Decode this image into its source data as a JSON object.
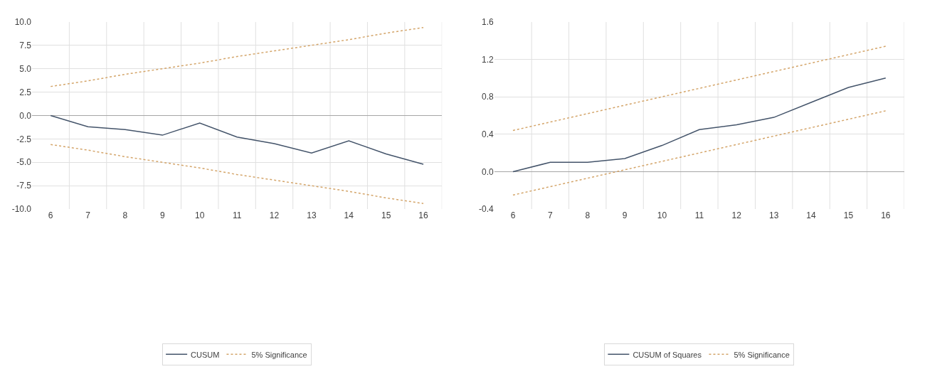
{
  "chart_data": [
    {
      "type": "line",
      "categories": [
        "6",
        "7",
        "8",
        "9",
        "10",
        "11",
        "12",
        "13",
        "14",
        "15",
        "16"
      ],
      "series": [
        {
          "name": "CUSUM",
          "color": "#44546a",
          "line_style": "solid",
          "values": [
            0,
            -1.2,
            -1.5,
            -2.1,
            -0.8,
            -2.3,
            -3.0,
            -4.0,
            -2.7,
            -4.1,
            -5.2
          ]
        },
        {
          "name": "5% Significance",
          "color": "#d4a56a",
          "line_style": "dotted",
          "values": [
            3.1,
            3.7,
            4.4,
            5.0,
            5.6,
            6.3,
            6.9,
            7.5,
            8.1,
            8.8,
            9.4
          ]
        },
        {
          "name": "5% Significance",
          "color": "#d4a56a",
          "line_style": "dotted",
          "values": [
            -3.1,
            -3.7,
            -4.4,
            -5.0,
            -5.6,
            -6.3,
            -6.9,
            -7.5,
            -8.1,
            -8.8,
            -9.4
          ]
        }
      ],
      "ylim": [
        -10,
        10
      ],
      "yticks": [
        {
          "value": -10,
          "label": "-10.0"
        },
        {
          "value": -7.5,
          "label": "-7.5"
        },
        {
          "value": -5,
          "label": "-5.0"
        },
        {
          "value": -2.5,
          "label": "-2.5"
        },
        {
          "value": 0,
          "label": "0.0"
        },
        {
          "value": 2.5,
          "label": "2.5"
        },
        {
          "value": 5,
          "label": "5.0"
        },
        {
          "value": 7.5,
          "label": "7.5"
        },
        {
          "value": 10,
          "label": "10.0"
        }
      ],
      "grid": true,
      "legend": "bottom",
      "marker": "none"
    },
    {
      "type": "line",
      "categories": [
        "6",
        "7",
        "8",
        "9",
        "10",
        "11",
        "12",
        "13",
        "14",
        "15",
        "16"
      ],
      "series": [
        {
          "name": "CUSUM of Squares",
          "color": "#44546a",
          "line_style": "solid",
          "values": [
            0,
            0.1,
            0.1,
            0.14,
            0.28,
            0.45,
            0.5,
            0.58,
            0.74,
            0.9,
            1.0
          ]
        },
        {
          "name": "5% Significance",
          "color": "#d4a56a",
          "line_style": "dotted",
          "values": [
            0.44,
            0.53,
            0.62,
            0.71,
            0.8,
            0.89,
            0.98,
            1.07,
            1.16,
            1.25,
            1.34
          ]
        },
        {
          "name": "5% Significance",
          "color": "#d4a56a",
          "line_style": "dotted",
          "values": [
            -0.25,
            -0.16,
            -0.07,
            0.02,
            0.11,
            0.2,
            0.29,
            0.38,
            0.47,
            0.56,
            0.65
          ]
        }
      ],
      "ylim": [
        -0.4,
        1.6
      ],
      "yticks": [
        {
          "value": -0.4,
          "label": "-0.4"
        },
        {
          "value": 0,
          "label": "0.0"
        },
        {
          "value": 0.4,
          "label": "0.4"
        },
        {
          "value": 0.8,
          "label": "0.8"
        },
        {
          "value": 1.2,
          "label": "1.2"
        },
        {
          "value": 1.6,
          "label": "1.6"
        }
      ],
      "grid": true,
      "legend": "bottom",
      "marker": "none"
    }
  ]
}
